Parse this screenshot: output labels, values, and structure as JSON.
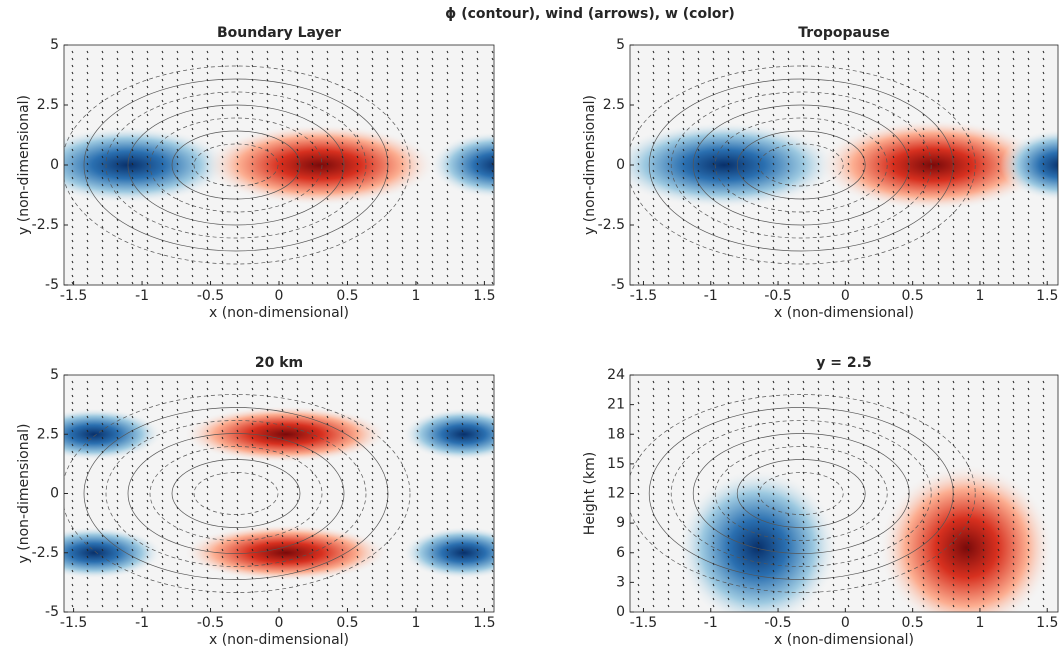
{
  "title": "ϕ (contour), wind (arrows), w (color)",
  "chart_data": [
    {
      "type": "contour",
      "title": "Boundary Layer",
      "xlabel": "x (non-dimensional)",
      "ylabel": "y (non-dimensional)",
      "xlim": [
        -1.57,
        1.57
      ],
      "ylim": [
        -5,
        5
      ],
      "xticks": [
        -1.5,
        -1,
        -0.5,
        0,
        0.5,
        1,
        1.5
      ],
      "yticks": [
        -5,
        -2.5,
        0,
        2.5,
        5
      ]
    },
    {
      "type": "contour",
      "title": "Tropopause",
      "xlabel": "x (non-dimensional)",
      "ylabel": "y (non-dimensional)",
      "xlim": [
        -1.6,
        1.58
      ],
      "ylim": [
        -5,
        5
      ],
      "xticks": [
        -1.5,
        -1,
        -0.5,
        0,
        0.5,
        1,
        1.5
      ],
      "yticks": [
        -5,
        -2.5,
        0,
        2.5,
        5
      ]
    },
    {
      "type": "contour",
      "title": "20 km",
      "xlabel": "x (non-dimensional)",
      "ylabel": "y (non-dimensional)",
      "xlim": [
        -1.57,
        1.57
      ],
      "ylim": [
        -5,
        5
      ],
      "xticks": [
        -1.5,
        -1,
        -0.5,
        0,
        0.5,
        1,
        1.5
      ],
      "yticks": [
        -5,
        -2.5,
        0,
        2.5,
        5
      ]
    },
    {
      "type": "contour",
      "title": "y = 2.5",
      "xlabel": "x (non-dimensional)",
      "ylabel": "Height (km)",
      "xlim": [
        -1.6,
        1.58
      ],
      "ylim": [
        0,
        24
      ],
      "xticks": [
        -1.5,
        -1,
        -0.5,
        0,
        0.5,
        1,
        1.5
      ],
      "yticks": [
        0,
        3,
        6,
        9,
        12,
        15,
        18,
        21,
        24
      ]
    }
  ]
}
